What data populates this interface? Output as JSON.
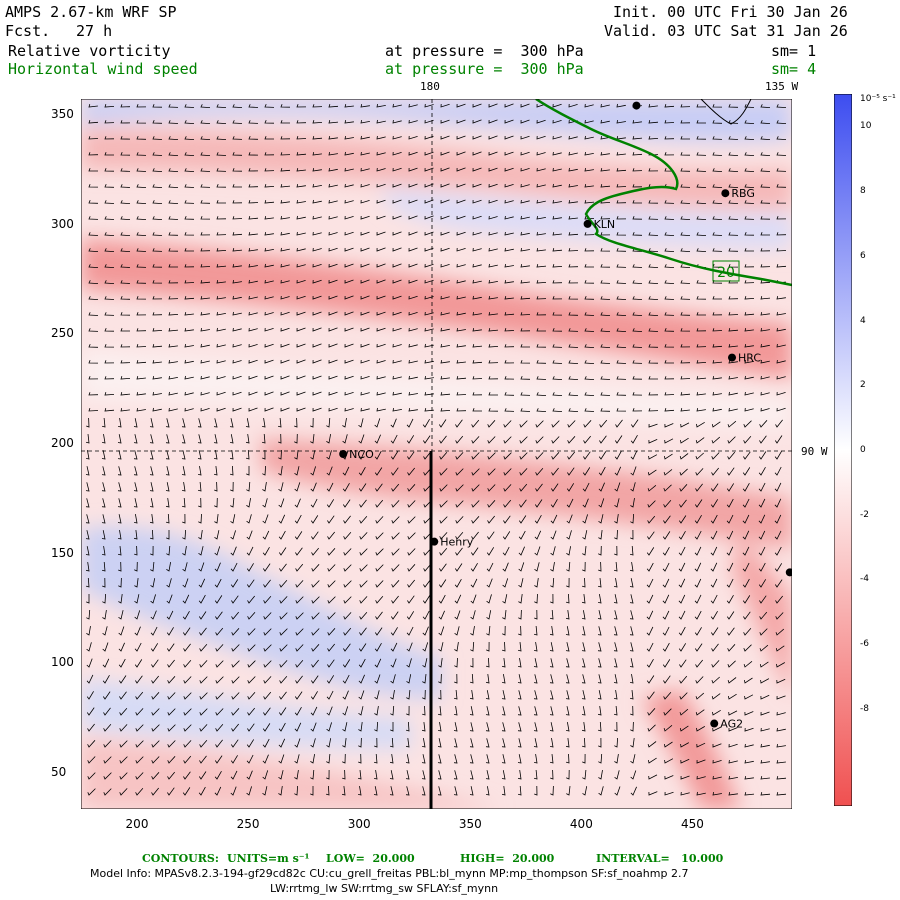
{
  "header": {
    "model": "AMPS 2.67-km WRF SP",
    "fcst_label": "Fcst.",
    "fcst_value": "27 h",
    "init": "Init. 00 UTC Fri 30 Jan 26",
    "valid": "Valid. 03 UTC Sat 31 Jan 26",
    "field1": "Relative vorticity",
    "field1_level": "at pressure =  300 hPa",
    "field1_sm": "sm= 1",
    "field2": "Horizontal wind speed",
    "field2_level": "at pressure =  300 hPa",
    "field2_sm": "sm= 4"
  },
  "map": {
    "xticks": [
      "200",
      "250",
      "300",
      "350",
      "400",
      "450"
    ],
    "yticks": [
      "350",
      "300",
      "250",
      "200",
      "150",
      "100",
      "50"
    ],
    "lon_180": "180",
    "lon_135w": "135 W",
    "lon_90w": "90 W",
    "stations": [
      {
        "name": "NCO",
        "x": 293,
        "y": 195
      },
      {
        "name": "Henry",
        "x": 334,
        "y": 155
      },
      {
        "name": "KLN",
        "x": 403,
        "y": 300
      },
      {
        "name": "RBG",
        "x": 465,
        "y": 314
      },
      {
        "name": "HRC",
        "x": 468,
        "y": 239
      },
      {
        "name": "AG2",
        "x": 460,
        "y": 72
      },
      {
        "name": "",
        "x": 494,
        "y": 141
      },
      {
        "name": "",
        "x": 425,
        "y": 354
      }
    ],
    "contour_label": "20",
    "contour_color": "#008200",
    "xrange": [
      175,
      495
    ],
    "yrange": [
      33,
      357
    ]
  },
  "colorbar": {
    "unit": "10⁻⁵ s⁻¹",
    "labels": [
      "10",
      "8",
      "6",
      "4",
      "2",
      "0",
      "-2",
      "-4",
      "-6",
      "-8"
    ]
  },
  "footer": {
    "contours_label": "CONTOURS:",
    "units": "UNITS=m s⁻¹",
    "low": "LOW=  20.000",
    "high": "HIGH=  20.000",
    "interval": "INTERVAL=   10.000",
    "model_info": "Model Info: MPASv8.2.3-194-gf29cd82c CU:cu_grell_freitas PBL:bl_mynn MP:mp_thompson SF:sf_noahmp 2.7",
    "model_info2": "LW:rrtmg_lw SW:rrtmg_sw SFLAY:sf_mynn"
  }
}
